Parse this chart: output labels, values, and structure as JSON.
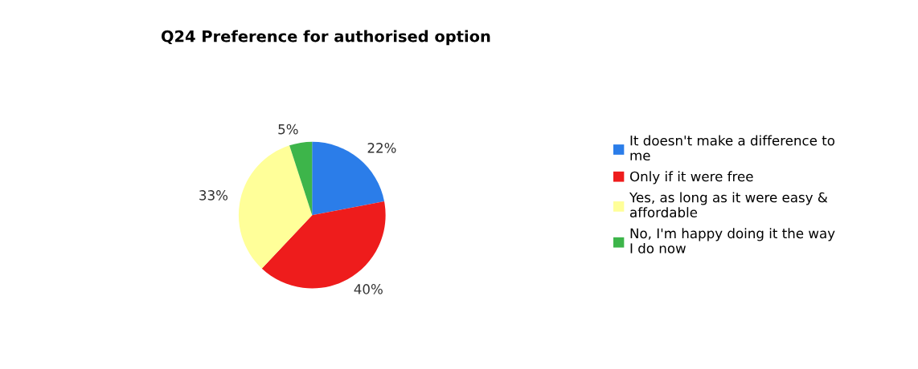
{
  "chart_data": {
    "type": "pie",
    "title": "Q24 Preference for authorised option",
    "categories": [
      "It doesn't make a difference to me",
      "Only if it were free",
      "Yes, as long as it were easy & affordable",
      "No, I'm happy doing it the way I do now"
    ],
    "values": [
      22,
      40,
      33,
      5
    ],
    "colors": [
      "#2b7de9",
      "#ee1c1c",
      "#ffff99",
      "#3db54a"
    ],
    "value_labels": [
      "22%",
      "40%",
      "33%",
      "5%"
    ],
    "legend": "right"
  }
}
